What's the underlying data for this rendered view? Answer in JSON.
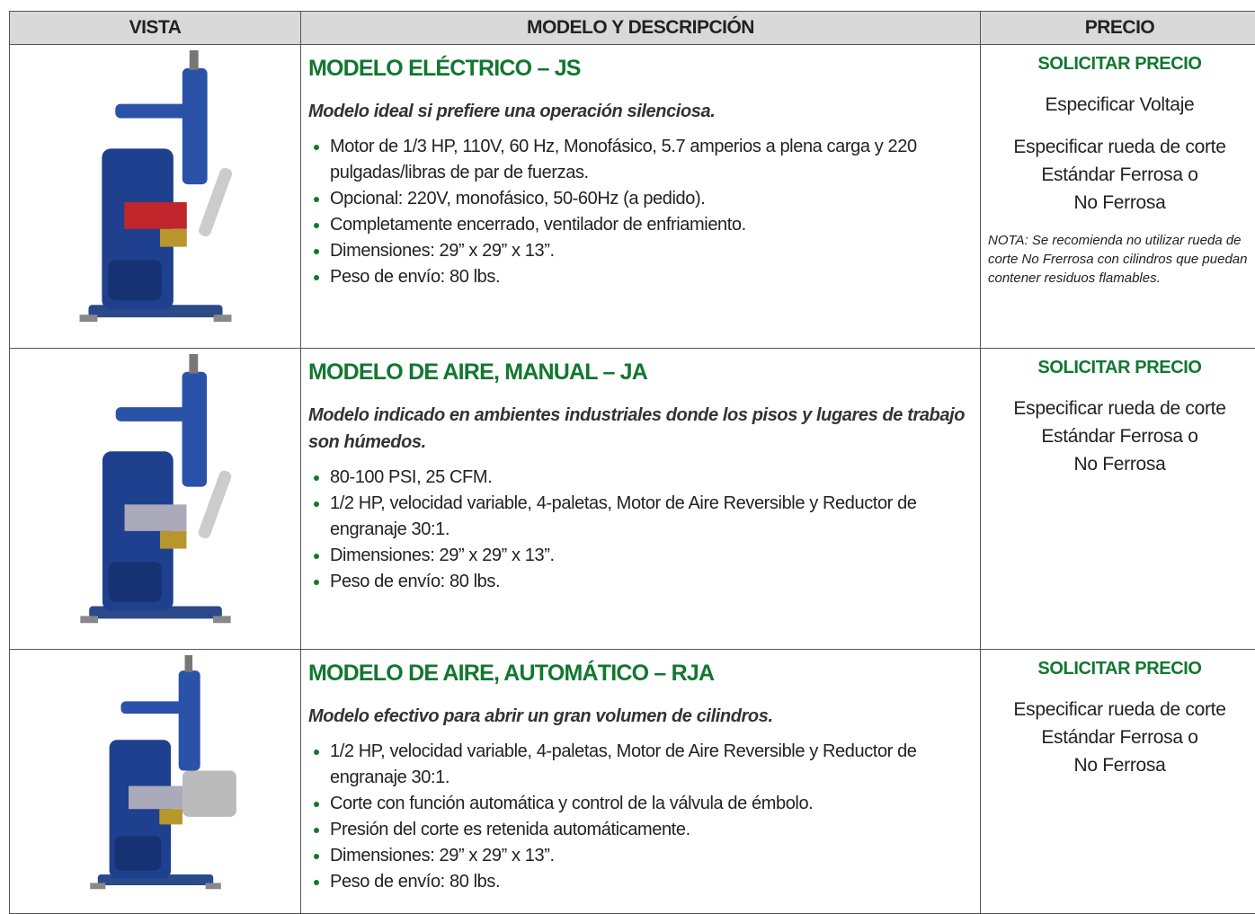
{
  "table": {
    "headers": [
      "VISTA",
      "MODELO Y DESCRIPCIÓN",
      "PRECIO"
    ],
    "rows": [
      {
        "model": "MODELO ELÉCTRICO – JS",
        "tagline": "Modelo ideal si prefiere una operación silenciosa.",
        "bullets": [
          "Motor de 1/3 HP, 110V, 60 Hz, Monofásico, 5.7 amperios a plena carga y 220 pulgadas/libras de par de fuerzas.",
          "Opcional: 220V, monofásico, 50-60Hz (a pedido).",
          "Completamente encerrado, ventilador de enfriamiento.",
          "Dimensiones: 29” x 29” x 13”.",
          "Peso de envío: 80 lbs."
        ],
        "price_title": "SOLICITAR PRECIO",
        "price_lines": [
          [
            "Especificar Voltaje"
          ],
          [
            "Especificar rueda de corte",
            "Estándar Ferrosa o",
            "No Ferrosa"
          ]
        ],
        "note": "NOTA: Se recomienda no utilizar rueda de corte No Frerrosa con cilindros que puedan contener residuos flamables."
      },
      {
        "model": "MODELO DE AIRE, MANUAL – JA",
        "tagline": "Modelo indicado en ambientes industriales donde los pisos y lugares de trabajo son húmedos.",
        "bullets": [
          "80-100 PSI, 25 CFM.",
          "1/2 HP, velocidad variable, 4-paletas, Motor de Aire Reversible y Reductor de engranaje 30:1.",
          "Dimensiones: 29” x 29” x 13”.",
          "Peso de envío: 80 lbs."
        ],
        "price_title": "SOLICITAR PRECIO",
        "price_lines": [
          [
            "Especificar rueda de corte",
            "Estándar Ferrosa o",
            "No Ferrosa"
          ]
        ]
      },
      {
        "model": "MODELO DE AIRE, AUTOMÁTICO – RJA",
        "tagline": "Modelo efectivo para abrir un gran volumen de cilindros.",
        "bullets": [
          "1/2 HP, velocidad variable, 4-paletas, Motor de Aire Reversible y Reductor de engranaje 30:1.",
          "Corte con función automática y control de la válvula de émbolo.",
          "Presión del corte es retenida automáticamente.",
          "Dimensiones: 29” x 29” x 13”.",
          "Peso de envío: 80 lbs."
        ],
        "price_title": "SOLICITAR PRECIO",
        "price_lines": [
          [
            "Especificar rueda de corte",
            "Estándar Ferrosa o",
            "No Ferrosa"
          ]
        ]
      }
    ]
  }
}
